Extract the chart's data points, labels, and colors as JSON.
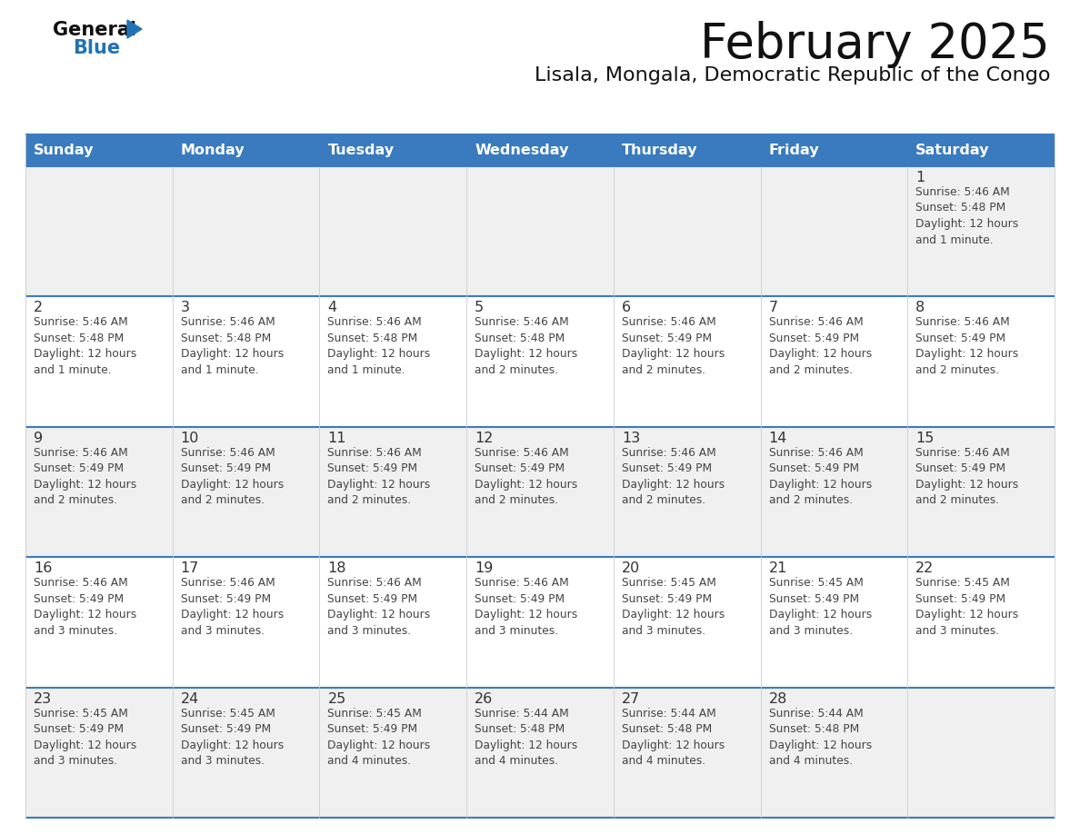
{
  "title": "February 2025",
  "subtitle": "Lisala, Mongala, Democratic Republic of the Congo",
  "days_of_week": [
    "Sunday",
    "Monday",
    "Tuesday",
    "Wednesday",
    "Thursday",
    "Friday",
    "Saturday"
  ],
  "header_bg": "#3a7bbf",
  "header_text_color": "#ffffff",
  "row_bg_odd": "#f0f0f0",
  "row_bg_even": "#ffffff",
  "separator_color": "#3a7bbf",
  "text_color": "#444444",
  "day_num_color": "#333333",
  "calendar_data": [
    [
      null,
      null,
      null,
      null,
      null,
      null,
      {
        "day": 1,
        "sunrise": "5:46 AM",
        "sunset": "5:48 PM",
        "daylight": "12 hours\nand 1 minute."
      }
    ],
    [
      {
        "day": 2,
        "sunrise": "5:46 AM",
        "sunset": "5:48 PM",
        "daylight": "12 hours\nand 1 minute."
      },
      {
        "day": 3,
        "sunrise": "5:46 AM",
        "sunset": "5:48 PM",
        "daylight": "12 hours\nand 1 minute."
      },
      {
        "day": 4,
        "sunrise": "5:46 AM",
        "sunset": "5:48 PM",
        "daylight": "12 hours\nand 1 minute."
      },
      {
        "day": 5,
        "sunrise": "5:46 AM",
        "sunset": "5:48 PM",
        "daylight": "12 hours\nand 2 minutes."
      },
      {
        "day": 6,
        "sunrise": "5:46 AM",
        "sunset": "5:49 PM",
        "daylight": "12 hours\nand 2 minutes."
      },
      {
        "day": 7,
        "sunrise": "5:46 AM",
        "sunset": "5:49 PM",
        "daylight": "12 hours\nand 2 minutes."
      },
      {
        "day": 8,
        "sunrise": "5:46 AM",
        "sunset": "5:49 PM",
        "daylight": "12 hours\nand 2 minutes."
      }
    ],
    [
      {
        "day": 9,
        "sunrise": "5:46 AM",
        "sunset": "5:49 PM",
        "daylight": "12 hours\nand 2 minutes."
      },
      {
        "day": 10,
        "sunrise": "5:46 AM",
        "sunset": "5:49 PM",
        "daylight": "12 hours\nand 2 minutes."
      },
      {
        "day": 11,
        "sunrise": "5:46 AM",
        "sunset": "5:49 PM",
        "daylight": "12 hours\nand 2 minutes."
      },
      {
        "day": 12,
        "sunrise": "5:46 AM",
        "sunset": "5:49 PM",
        "daylight": "12 hours\nand 2 minutes."
      },
      {
        "day": 13,
        "sunrise": "5:46 AM",
        "sunset": "5:49 PM",
        "daylight": "12 hours\nand 2 minutes."
      },
      {
        "day": 14,
        "sunrise": "5:46 AM",
        "sunset": "5:49 PM",
        "daylight": "12 hours\nand 2 minutes."
      },
      {
        "day": 15,
        "sunrise": "5:46 AM",
        "sunset": "5:49 PM",
        "daylight": "12 hours\nand 2 minutes."
      }
    ],
    [
      {
        "day": 16,
        "sunrise": "5:46 AM",
        "sunset": "5:49 PM",
        "daylight": "12 hours\nand 3 minutes."
      },
      {
        "day": 17,
        "sunrise": "5:46 AM",
        "sunset": "5:49 PM",
        "daylight": "12 hours\nand 3 minutes."
      },
      {
        "day": 18,
        "sunrise": "5:46 AM",
        "sunset": "5:49 PM",
        "daylight": "12 hours\nand 3 minutes."
      },
      {
        "day": 19,
        "sunrise": "5:46 AM",
        "sunset": "5:49 PM",
        "daylight": "12 hours\nand 3 minutes."
      },
      {
        "day": 20,
        "sunrise": "5:45 AM",
        "sunset": "5:49 PM",
        "daylight": "12 hours\nand 3 minutes."
      },
      {
        "day": 21,
        "sunrise": "5:45 AM",
        "sunset": "5:49 PM",
        "daylight": "12 hours\nand 3 minutes."
      },
      {
        "day": 22,
        "sunrise": "5:45 AM",
        "sunset": "5:49 PM",
        "daylight": "12 hours\nand 3 minutes."
      }
    ],
    [
      {
        "day": 23,
        "sunrise": "5:45 AM",
        "sunset": "5:49 PM",
        "daylight": "12 hours\nand 3 minutes."
      },
      {
        "day": 24,
        "sunrise": "5:45 AM",
        "sunset": "5:49 PM",
        "daylight": "12 hours\nand 3 minutes."
      },
      {
        "day": 25,
        "sunrise": "5:45 AM",
        "sunset": "5:49 PM",
        "daylight": "12 hours\nand 4 minutes."
      },
      {
        "day": 26,
        "sunrise": "5:44 AM",
        "sunset": "5:48 PM",
        "daylight": "12 hours\nand 4 minutes."
      },
      {
        "day": 27,
        "sunrise": "5:44 AM",
        "sunset": "5:48 PM",
        "daylight": "12 hours\nand 4 minutes."
      },
      {
        "day": 28,
        "sunrise": "5:44 AM",
        "sunset": "5:48 PM",
        "daylight": "12 hours\nand 4 minutes."
      },
      null
    ]
  ],
  "logo_triangle_color": "#2272b5",
  "logo_general_color": "#111111",
  "logo_blue_color": "#2272b5"
}
